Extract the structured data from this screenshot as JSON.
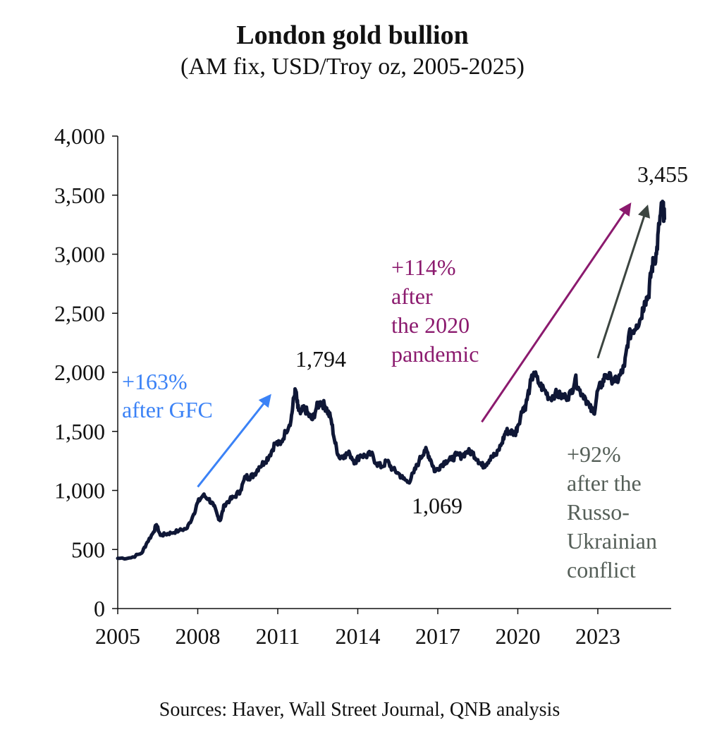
{
  "chart_data": {
    "type": "line",
    "title": "London gold bullion",
    "subtitle": "(AM fix, USD/Troy oz, 2005-2025)",
    "xlabel": "",
    "ylabel": "",
    "xlim": [
      2005,
      2025.75
    ],
    "ylim": [
      0,
      4000
    ],
    "x_ticks": [
      "2005",
      "2008",
      "2011",
      "2014",
      "2017",
      "2020",
      "2023"
    ],
    "x_tick_values": [
      2005,
      2008,
      2011,
      2014,
      2017,
      2020,
      2023
    ],
    "y_ticks": [
      "0",
      "500",
      "1,000",
      "1,500",
      "2,000",
      "2,500",
      "3,000",
      "3,500",
      "4,000"
    ],
    "y_tick_values": [
      0,
      500,
      1000,
      1500,
      2000,
      2500,
      3000,
      3500,
      4000
    ],
    "grid": false,
    "series_color": "#0f1736",
    "series": [
      {
        "x": [
          2005.0,
          2005.5,
          2005.9,
          2006.1,
          2006.35,
          2006.45,
          2006.6,
          2006.8,
          2007.0,
          2007.3,
          2007.6,
          2007.85,
          2008.0,
          2008.2,
          2008.4,
          2008.6,
          2008.75,
          2008.85,
          2009.0,
          2009.2,
          2009.4,
          2009.6,
          2009.8,
          2009.92,
          2010.1,
          2010.3,
          2010.5,
          2010.7,
          2010.9,
          2011.1,
          2011.3,
          2011.5,
          2011.6,
          2011.67,
          2011.75,
          2011.85,
          2012.0,
          2012.15,
          2012.3,
          2012.45,
          2012.6,
          2012.75,
          2012.85,
          2013.0,
          2013.15,
          2013.3,
          2013.5,
          2013.7,
          2013.9,
          2014.1,
          2014.3,
          2014.5,
          2014.7,
          2014.9,
          2015.1,
          2015.3,
          2015.5,
          2015.7,
          2015.9,
          2016.1,
          2016.3,
          2016.5,
          2016.6,
          2016.75,
          2016.9,
          2017.1,
          2017.3,
          2017.5,
          2017.7,
          2017.9,
          2018.1,
          2018.3,
          2018.5,
          2018.65,
          2018.8,
          2019.0,
          2019.2,
          2019.4,
          2019.55,
          2019.7,
          2019.9,
          2020.0,
          2020.2,
          2020.3,
          2020.45,
          2020.6,
          2020.8,
          2021.0,
          2021.2,
          2021.4,
          2021.6,
          2021.8,
          2022.0,
          2022.15,
          2022.3,
          2022.5,
          2022.7,
          2022.85,
          2023.0,
          2023.15,
          2023.3,
          2023.5,
          2023.7,
          2023.85,
          2024.0,
          2024.15,
          2024.3,
          2024.45,
          2024.6,
          2024.75,
          2024.9,
          2025.0,
          2025.1,
          2025.2,
          2025.3,
          2025.4,
          2025.45,
          2025.5
        ],
        "y": [
          425,
          430,
          470,
          560,
          650,
          710,
          620,
          630,
          640,
          660,
          680,
          800,
          900,
          960,
          930,
          870,
          780,
          750,
          880,
          920,
          950,
          1000,
          1120,
          1110,
          1130,
          1200,
          1240,
          1300,
          1400,
          1390,
          1500,
          1600,
          1780,
          1850,
          1700,
          1650,
          1700,
          1640,
          1600,
          1700,
          1750,
          1720,
          1680,
          1600,
          1400,
          1280,
          1300,
          1310,
          1240,
          1300,
          1290,
          1310,
          1230,
          1200,
          1250,
          1180,
          1150,
          1100,
          1070,
          1150,
          1250,
          1340,
          1330,
          1250,
          1160,
          1210,
          1250,
          1260,
          1300,
          1290,
          1330,
          1320,
          1260,
          1210,
          1220,
          1290,
          1300,
          1400,
          1500,
          1500,
          1480,
          1550,
          1700,
          1720,
          1880,
          2000,
          1900,
          1850,
          1780,
          1820,
          1800,
          1790,
          1820,
          1950,
          1850,
          1800,
          1700,
          1650,
          1850,
          1900,
          1980,
          1950,
          1920,
          1980,
          2050,
          2300,
          2350,
          2400,
          2450,
          2600,
          2650,
          2850,
          2950,
          3000,
          3250,
          3400,
          3380,
          3300
        ]
      }
    ],
    "annotations": [
      {
        "id": "peak-2011",
        "text": "1,794",
        "color": "#111111"
      },
      {
        "id": "trough-2015",
        "text": "1,069",
        "color": "#111111"
      },
      {
        "id": "latest",
        "text": "3,455",
        "color": "#111111"
      },
      {
        "id": "gfc",
        "lines": [
          "+163%",
          "after GFC"
        ],
        "color": "#3b82f6"
      },
      {
        "id": "pandemic",
        "lines": [
          "+114%",
          "after",
          "the 2020",
          "pandemic"
        ],
        "color": "#8b1a6e"
      },
      {
        "id": "ukraine",
        "lines": [
          "+92%",
          "after the",
          "Russo-",
          "Ukrainian",
          "conflict"
        ],
        "color": "#555f58"
      }
    ],
    "arrows": [
      {
        "id": "gfc-arrow",
        "from": [
          2008.0,
          1030
        ],
        "to": [
          2010.7,
          1800
        ],
        "color": "#3b82f6"
      },
      {
        "id": "pandemic-arrow",
        "from": [
          2018.65,
          1580
        ],
        "to": [
          2024.2,
          3420
        ],
        "color": "#8b1a6e"
      },
      {
        "id": "ukraine-arrow",
        "from": [
          2023.0,
          2120
        ],
        "to": [
          2024.85,
          3400
        ],
        "color": "#3c4540"
      }
    ],
    "source": "Sources: Haver, Wall Street Journal, QNB analysis"
  }
}
